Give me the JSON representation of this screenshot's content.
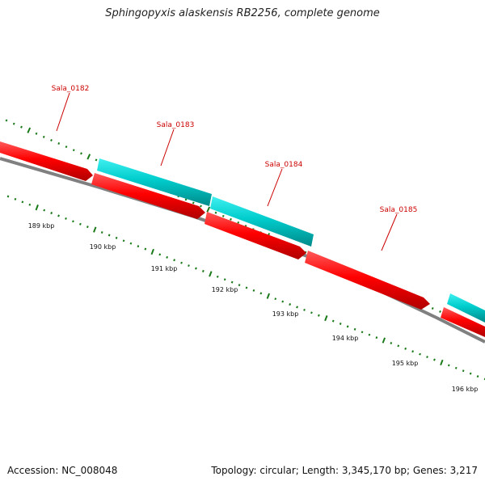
{
  "title": "Sphingopyxis alaskensis RB2256, complete genome",
  "footer": {
    "accession": "Accession: NC_008048",
    "summary": "Topology: circular; Length: 3,345,170 bp; Genes: 3,217"
  },
  "map": {
    "kbp_labels": [
      "189 kbp",
      "190 kbp",
      "191 kbp",
      "192 kbp",
      "193 kbp",
      "194 kbp",
      "195 kbp",
      "196 kbp"
    ],
    "genes": [
      {
        "name": "Sala_0182",
        "strand": "forward"
      },
      {
        "name": "Sala_0183",
        "strand": "reverse"
      },
      {
        "name": "Sala_0184",
        "strand": "reverse"
      },
      {
        "name": "Sala_0185",
        "strand": "forward"
      }
    ],
    "colors": {
      "forward_gene": "#ff0000",
      "reverse_gene": "#00cccc",
      "gene_label": "#cc0000",
      "tick": "#1a7a1a",
      "backbone": "#808080"
    }
  }
}
